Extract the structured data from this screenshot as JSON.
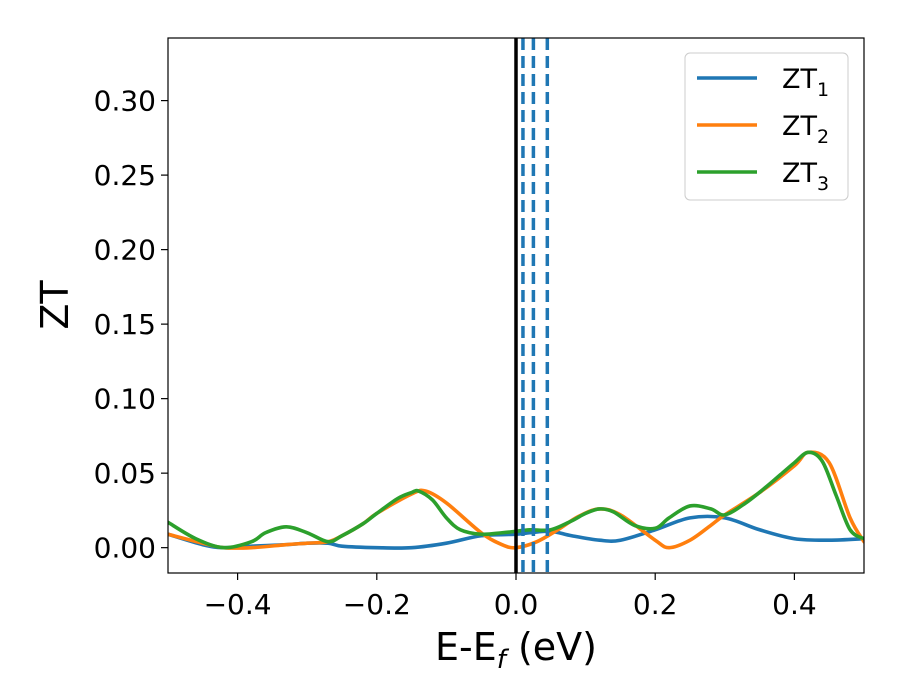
{
  "chart_data": {
    "type": "line",
    "xlabel": {
      "main": "E-E",
      "sub": "f",
      "unit": " (eV)"
    },
    "ylabel": "ZT",
    "xlim": [
      -0.5,
      0.5
    ],
    "ylim": [
      -0.017,
      0.342
    ],
    "xticks": [
      -0.4,
      -0.2,
      0.0,
      0.2,
      0.4
    ],
    "xtick_labels": [
      "−0.4",
      "−0.2",
      "0.0",
      "0.2",
      "0.4"
    ],
    "yticks": [
      0.0,
      0.05,
      0.1,
      0.15,
      0.2,
      0.25,
      0.3
    ],
    "ytick_labels": [
      "0.00",
      "0.05",
      "0.10",
      "0.15",
      "0.20",
      "0.25",
      "0.30"
    ],
    "grid": false,
    "legend_position": "top-right",
    "fermi_line": {
      "x": 0.0,
      "color": "#000000",
      "style": "solid"
    },
    "dashed_lines": {
      "x": [
        0.01,
        0.025,
        0.045
      ],
      "color": "#1f77b4",
      "style": "dashed"
    },
    "series": [
      {
        "name": "ZT",
        "sub": "1",
        "color": "#1f77b4",
        "x": [
          -0.5,
          -0.45,
          -0.42,
          -0.38,
          -0.33,
          -0.3,
          -0.27,
          -0.25,
          -0.2,
          -0.15,
          -0.1,
          -0.05,
          0.0,
          0.02,
          0.05,
          0.08,
          0.12,
          0.15,
          0.2,
          0.25,
          0.3,
          0.35,
          0.4,
          0.45,
          0.5
        ],
        "y": [
          0.009,
          0.002,
          0.0,
          0.001,
          0.002,
          0.003,
          0.003,
          0.001,
          0.0,
          0.0,
          0.003,
          0.008,
          0.009,
          0.01,
          0.011,
          0.008,
          0.005,
          0.005,
          0.012,
          0.02,
          0.02,
          0.012,
          0.006,
          0.005,
          0.006
        ]
      },
      {
        "name": "ZT",
        "sub": "2",
        "color": "#ff7f0e",
        "x": [
          -0.5,
          -0.45,
          -0.42,
          -0.38,
          -0.33,
          -0.3,
          -0.27,
          -0.25,
          -0.22,
          -0.2,
          -0.15,
          -0.13,
          -0.1,
          -0.05,
          -0.02,
          0.0,
          0.03,
          0.06,
          0.09,
          0.12,
          0.15,
          0.2,
          0.22,
          0.25,
          0.28,
          0.3,
          0.35,
          0.4,
          0.42,
          0.45,
          0.48,
          0.5
        ],
        "y": [
          0.009,
          0.003,
          0.0,
          0.0,
          0.002,
          0.003,
          0.004,
          0.008,
          0.016,
          0.023,
          0.036,
          0.038,
          0.03,
          0.01,
          0.002,
          0.0,
          0.004,
          0.012,
          0.021,
          0.026,
          0.022,
          0.005,
          0.0,
          0.005,
          0.015,
          0.022,
          0.037,
          0.055,
          0.064,
          0.057,
          0.02,
          0.004
        ]
      },
      {
        "name": "ZT",
        "sub": "3",
        "color": "#2ca02c",
        "x": [
          -0.5,
          -0.46,
          -0.42,
          -0.38,
          -0.36,
          -0.33,
          -0.3,
          -0.27,
          -0.25,
          -0.22,
          -0.2,
          -0.17,
          -0.15,
          -0.14,
          -0.12,
          -0.1,
          -0.08,
          -0.05,
          -0.02,
          0.0,
          0.02,
          0.05,
          0.08,
          0.1,
          0.12,
          0.14,
          0.17,
          0.2,
          0.22,
          0.25,
          0.28,
          0.3,
          0.33,
          0.36,
          0.38,
          0.4,
          0.42,
          0.44,
          0.46,
          0.48,
          0.5
        ],
        "y": [
          0.017,
          0.006,
          0.0,
          0.004,
          0.01,
          0.014,
          0.01,
          0.004,
          0.008,
          0.016,
          0.023,
          0.033,
          0.037,
          0.038,
          0.032,
          0.02,
          0.012,
          0.009,
          0.01,
          0.011,
          0.012,
          0.012,
          0.018,
          0.023,
          0.026,
          0.024,
          0.015,
          0.013,
          0.02,
          0.028,
          0.026,
          0.022,
          0.03,
          0.041,
          0.049,
          0.057,
          0.064,
          0.058,
          0.035,
          0.012,
          0.006
        ]
      }
    ]
  }
}
